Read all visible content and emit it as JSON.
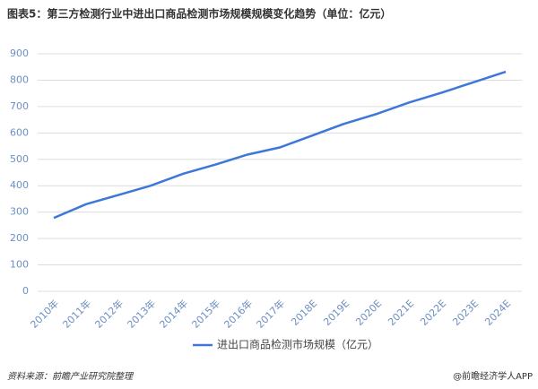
{
  "chart_data": {
    "type": "line",
    "title": "图表5：第三方检测行业中进出口商品检测市场规模规模变化趋势（单位：亿元）",
    "categories": [
      "2010年",
      "2011年",
      "2012年",
      "2013年",
      "2014年",
      "2015年",
      "2016年",
      "2017年",
      "2018E",
      "2019E",
      "2020E",
      "2021E",
      "2022E",
      "2023E",
      "2024E"
    ],
    "series": [
      {
        "name": "进出口商品检测市场规模（亿元）",
        "color": "#3d78d8",
        "values": [
          278,
          330,
          365,
          400,
          445,
          480,
          518,
          545,
          590,
          635,
          672,
          715,
          752,
          792,
          832
        ]
      }
    ],
    "ylim": [
      0,
      900
    ],
    "yticks": [
      0,
      100,
      200,
      300,
      400,
      500,
      600,
      700,
      800,
      900
    ],
    "grid": true,
    "legend": "bottom",
    "source": "资料来源：前瞻产业研究院整理",
    "credit": "@前瞻经济学人APP"
  }
}
